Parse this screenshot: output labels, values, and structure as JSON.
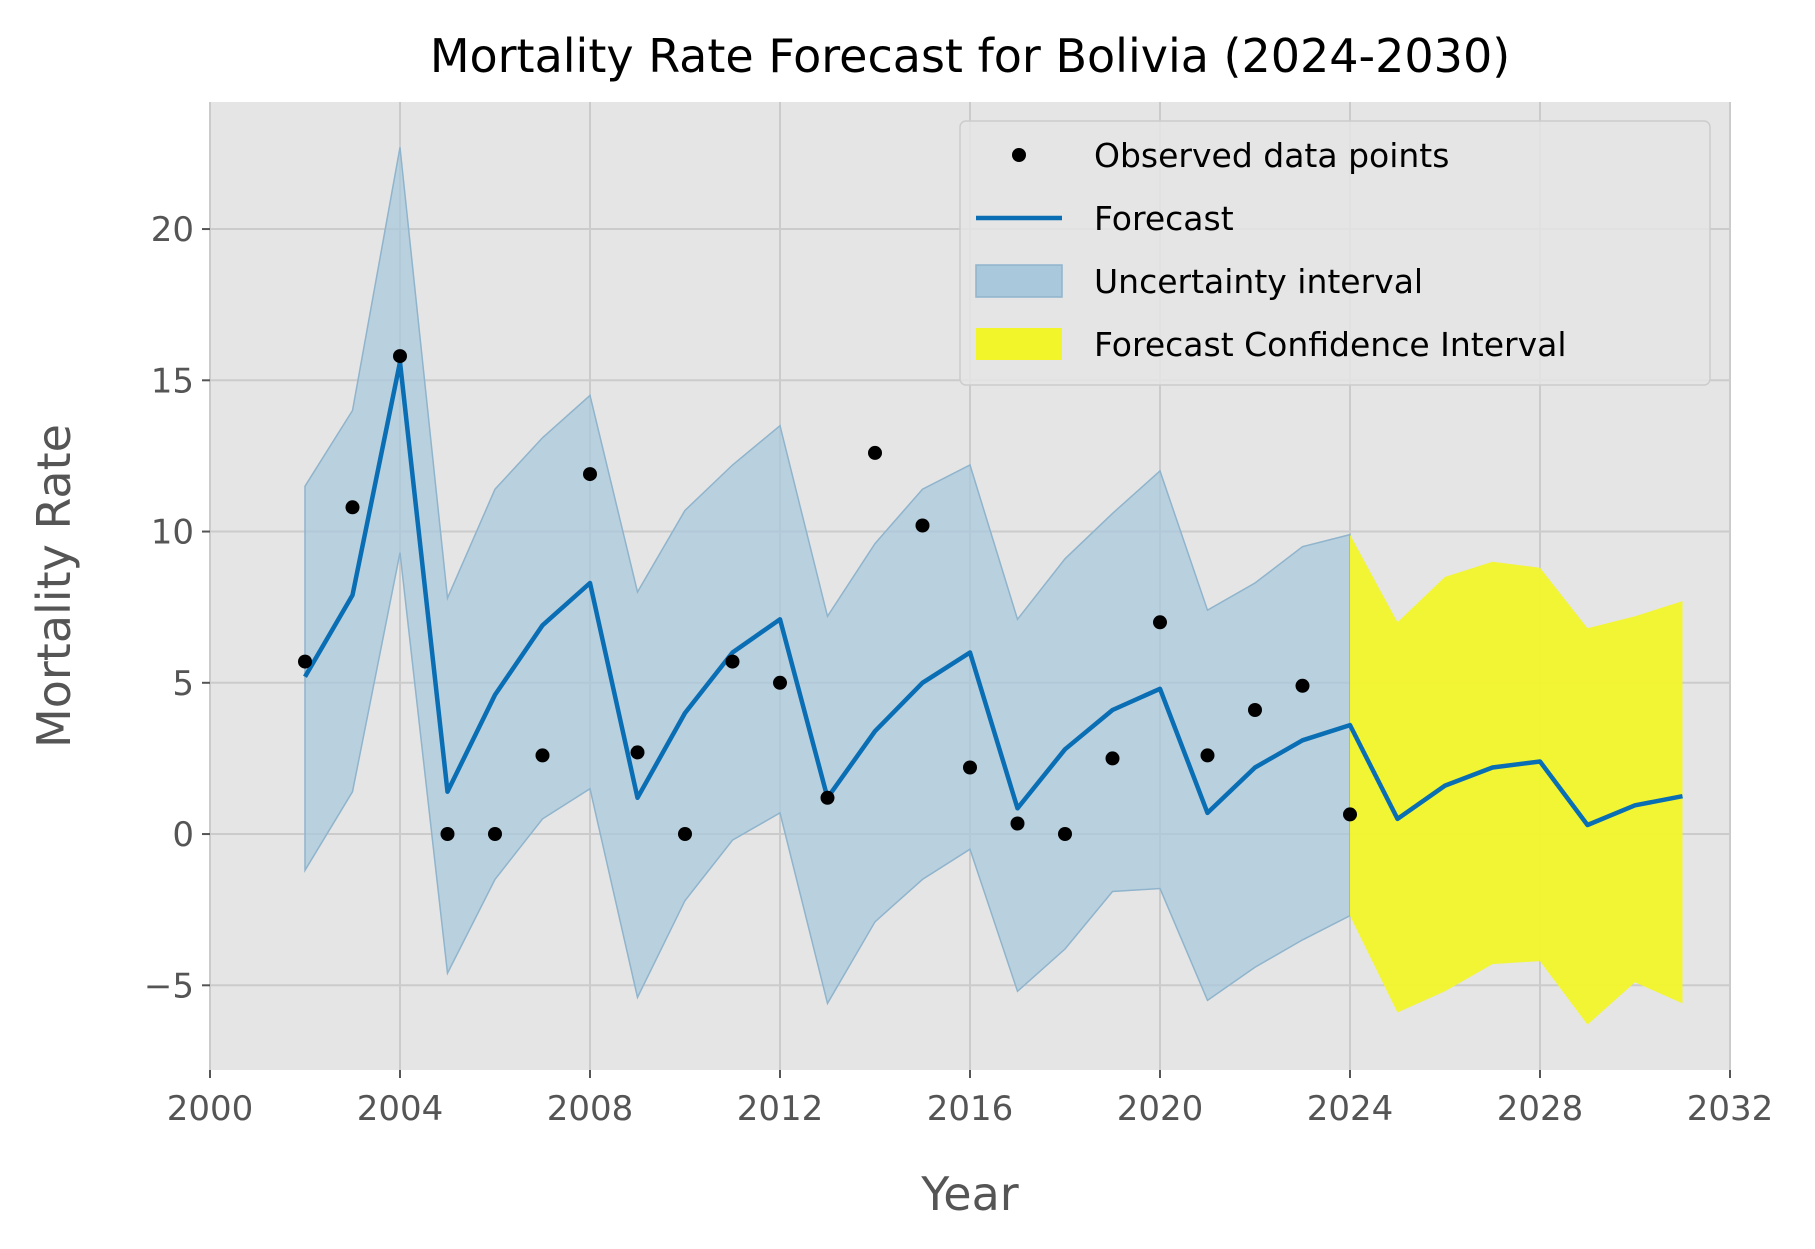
{
  "chart_data": {
    "type": "line",
    "title": "Mortality Rate Forecast for Bolivia (2024-2030)",
    "xlabel": "Year",
    "ylabel": "Mortality Rate",
    "xlim": [
      2000,
      2032
    ],
    "ylim": [
      -7.8,
      24.2
    ],
    "x_ticks": [
      2000,
      2004,
      2008,
      2012,
      2016,
      2020,
      2024,
      2028,
      2032
    ],
    "x_tick_labels": [
      "2000",
      "2004",
      "2008",
      "2012",
      "2016",
      "2020",
      "2024",
      "2028",
      "2032"
    ],
    "y_ticks": [
      -5,
      0,
      5,
      10,
      15,
      20
    ],
    "y_tick_labels": [
      "−5",
      "0",
      "5",
      "10",
      "15",
      "20"
    ],
    "grid": true,
    "legend_position": "top-right",
    "colors": {
      "background": "#e5e5e5",
      "grid": "#cbcbcb",
      "forecast_line": "#0a6eb4",
      "uncertainty_band": "#a9c8dc",
      "confidence_band": "#f2f52a",
      "points": "#000000"
    },
    "legend": [
      {
        "label": "Observed data points",
        "kind": "point"
      },
      {
        "label": "Forecast",
        "kind": "line"
      },
      {
        "label": "Uncertainty interval",
        "kind": "band"
      },
      {
        "label": "Forecast Confidence Interval",
        "kind": "confidence"
      }
    ],
    "observed": {
      "name": "Observed data points",
      "x": [
        2002,
        2003,
        2004,
        2005,
        2006,
        2007,
        2008,
        2009,
        2010,
        2011,
        2012,
        2013,
        2014,
        2015,
        2016,
        2017,
        2018,
        2019,
        2020,
        2021,
        2022,
        2023,
        2024
      ],
      "y": [
        5.7,
        10.8,
        15.8,
        0,
        0,
        2.6,
        11.9,
        2.7,
        0,
        5.7,
        5.0,
        1.2,
        12.6,
        10.2,
        2.2,
        0.35,
        0,
        2.5,
        7.0,
        2.6,
        4.1,
        4.9,
        0.65
      ]
    },
    "forecast": {
      "name": "Forecast",
      "x": [
        2002,
        2003,
        2004,
        2005,
        2006,
        2007,
        2008,
        2009,
        2010,
        2011,
        2012,
        2013,
        2014,
        2015,
        2016,
        2017,
        2018,
        2019,
        2020,
        2021,
        2022,
        2023,
        2024,
        2025,
        2026,
        2027,
        2028,
        2029,
        2030,
        2031
      ],
      "y": [
        5.2,
        7.9,
        15.6,
        1.4,
        4.6,
        6.9,
        8.3,
        1.2,
        4.0,
        6.0,
        7.1,
        1.2,
        3.4,
        5.0,
        6.0,
        0.85,
        2.8,
        4.1,
        4.8,
        0.7,
        2.2,
        3.1,
        3.6,
        0.5,
        1.6,
        2.2,
        2.4,
        0.3,
        0.95,
        1.25
      ]
    },
    "uncertainty_interval": {
      "name": "Uncertainty interval",
      "x": [
        2002,
        2003,
        2004,
        2005,
        2006,
        2007,
        2008,
        2009,
        2010,
        2011,
        2012,
        2013,
        2014,
        2015,
        2016,
        2017,
        2018,
        2019,
        2020,
        2021,
        2022,
        2023,
        2024
      ],
      "lower": [
        -1.2,
        1.4,
        9.3,
        -4.6,
        -1.5,
        0.5,
        1.5,
        -5.4,
        -2.2,
        -0.2,
        0.7,
        -5.6,
        -2.9,
        -1.5,
        -0.5,
        -5.2,
        -3.8,
        -1.9,
        -1.8,
        -5.5,
        -4.4,
        -3.5,
        -2.7
      ],
      "upper": [
        11.5,
        14.0,
        22.7,
        7.8,
        11.4,
        13.1,
        14.5,
        8.0,
        10.7,
        12.2,
        13.5,
        7.2,
        9.6,
        11.4,
        12.2,
        7.1,
        9.1,
        10.6,
        12.0,
        7.4,
        8.3,
        9.5,
        9.9
      ]
    },
    "forecast_confidence_interval": {
      "name": "Forecast Confidence Interval",
      "x": [
        2024,
        2025,
        2026,
        2027,
        2028,
        2029,
        2030,
        2031
      ],
      "lower": [
        -2.7,
        -5.9,
        -5.2,
        -4.3,
        -4.2,
        -6.3,
        -4.9,
        -5.6
      ],
      "upper": [
        9.9,
        7.0,
        8.5,
        9.0,
        8.8,
        6.8,
        7.2,
        7.7
      ]
    }
  }
}
